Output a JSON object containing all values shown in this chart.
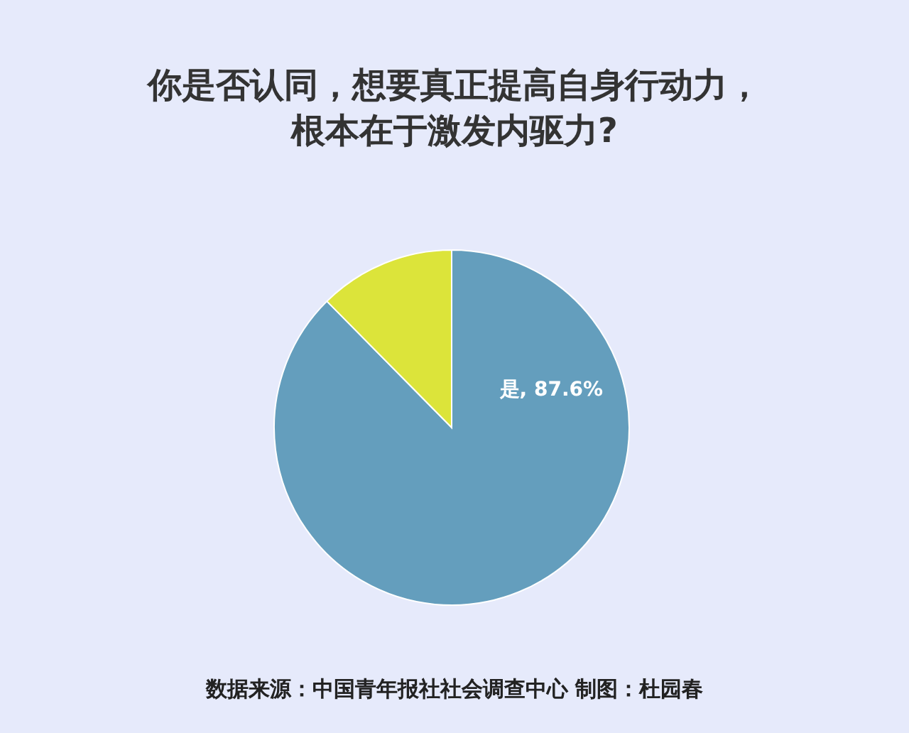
{
  "chart_data": {
    "type": "pie",
    "title": "你是否认同，想要真正提高自身行动力，根本在于激发内驱力?",
    "categories": [
      "是",
      null
    ],
    "values": [
      87.6,
      12.4
    ],
    "colors": [
      "#649ebd",
      "#dce43a"
    ],
    "value_labels": [
      ", 87.6%",
      null
    ],
    "annotations": [
      "数据来源：中国青年报社社会调查中心  制图：杜园春"
    ]
  }
}
